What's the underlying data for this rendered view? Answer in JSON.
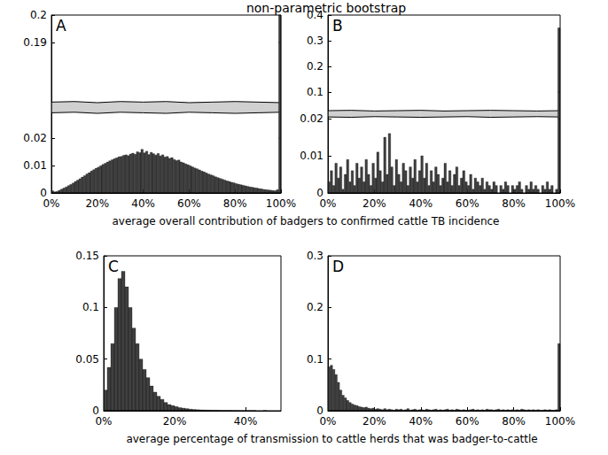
{
  "chart_data": [
    {
      "type": "histogram",
      "title": "non-parametric bootstrap",
      "annotation": "A",
      "xlabel": "average overall contribution of badgers to confirmed cattle TB incidence",
      "color": "#404040",
      "grid": false,
      "bins": [
        0,
        1,
        2,
        3,
        4,
        5,
        6,
        7,
        8,
        9,
        10,
        11,
        12,
        13,
        14,
        15,
        16,
        17,
        18,
        19,
        20,
        21,
        22,
        23,
        24,
        25,
        26,
        27,
        28,
        29,
        30,
        31,
        32,
        33,
        34,
        35,
        36,
        37,
        38,
        39,
        40,
        41,
        42,
        43,
        44,
        45,
        46,
        47,
        48,
        49,
        50,
        51,
        52,
        53,
        54,
        55,
        56,
        57,
        58,
        59,
        60,
        61,
        62,
        63,
        64,
        65,
        66,
        67,
        68,
        69,
        70,
        71,
        72,
        73,
        74,
        75,
        76,
        77,
        78,
        79,
        80,
        81,
        82,
        83,
        84,
        85,
        86,
        87,
        88,
        89,
        90,
        91,
        92,
        93,
        94,
        95,
        96,
        97,
        98,
        99,
        100
      ],
      "values": [
        0.0008,
        0.0004,
        0.0006,
        0.001,
        0.0014,
        0.0018,
        0.0022,
        0.0027,
        0.0031,
        0.0036,
        0.0042,
        0.0047,
        0.0052,
        0.0058,
        0.0063,
        0.0069,
        0.0074,
        0.008,
        0.0085,
        0.009,
        0.0094,
        0.0099,
        0.0104,
        0.0108,
        0.0113,
        0.0117,
        0.0121,
        0.0125,
        0.0128,
        0.0132,
        0.0133,
        0.0137,
        0.0139,
        0.0136,
        0.0142,
        0.0145,
        0.0141,
        0.015,
        0.0147,
        0.0159,
        0.0146,
        0.0152,
        0.014,
        0.0148,
        0.0143,
        0.0138,
        0.0144,
        0.0135,
        0.0139,
        0.0131,
        0.0133,
        0.0126,
        0.0129,
        0.0122,
        0.0118,
        0.012,
        0.0113,
        0.011,
        0.0106,
        0.0103,
        0.0099,
        0.0095,
        0.0091,
        0.0088,
        0.0084,
        0.008,
        0.0077,
        0.0073,
        0.0069,
        0.0066,
        0.0063,
        0.0059,
        0.0056,
        0.0053,
        0.005,
        0.0047,
        0.0044,
        0.0042,
        0.0039,
        0.0037,
        0.0034,
        0.0032,
        0.003,
        0.0028,
        0.0026,
        0.0024,
        0.0022,
        0.0021,
        0.0019,
        0.0018,
        0.0016,
        0.0015,
        0.0013,
        0.0012,
        0.0011,
        0.001,
        0.0009,
        0.0008,
        0.0012,
        0.2
      ],
      "band": {
        "x": [
          0,
          10,
          20,
          30,
          40,
          50,
          60,
          70,
          80,
          90,
          100
        ],
        "lower": [
          0.065,
          0.066,
          0.064,
          0.066,
          0.065,
          0.064,
          0.066,
          0.065,
          0.064,
          0.065,
          0.066
        ],
        "upper": [
          0.084,
          0.085,
          0.083,
          0.085,
          0.084,
          0.085,
          0.083,
          0.084,
          0.085,
          0.084,
          0.083
        ]
      },
      "xlim": [
        0,
        100
      ],
      "xticks": [
        {
          "value": 0,
          "label": "0%"
        },
        {
          "value": 20,
          "label": "20%"
        },
        {
          "value": 40,
          "label": "40%"
        },
        {
          "value": 60,
          "label": "60%"
        },
        {
          "value": 80,
          "label": "80%"
        },
        {
          "value": 100,
          "label": "100%"
        }
      ],
      "ylim": [
        0,
        0.2
      ],
      "yticks": [
        0,
        0.01,
        0.02,
        0.19,
        0.2
      ]
    },
    {
      "type": "histogram",
      "annotation": "B",
      "color": "#404040",
      "grid": false,
      "bins": [
        0,
        1,
        2,
        3,
        4,
        5,
        6,
        7,
        8,
        9,
        10,
        11,
        12,
        13,
        14,
        15,
        16,
        17,
        18,
        19,
        20,
        21,
        22,
        23,
        24,
        25,
        26,
        27,
        28,
        29,
        30,
        31,
        32,
        33,
        34,
        35,
        36,
        37,
        38,
        39,
        40,
        41,
        42,
        43,
        44,
        45,
        46,
        47,
        48,
        49,
        50,
        51,
        52,
        53,
        54,
        55,
        56,
        57,
        58,
        59,
        60,
        61,
        62,
        63,
        64,
        65,
        66,
        67,
        68,
        69,
        70,
        71,
        72,
        73,
        74,
        75,
        76,
        77,
        78,
        79,
        80,
        81,
        82,
        83,
        84,
        85,
        86,
        87,
        88,
        89,
        90,
        91,
        92,
        93,
        94,
        95,
        96,
        97,
        98,
        99,
        100
      ],
      "values": [
        0.003,
        0.006,
        0.002,
        0.008,
        0.004,
        0.007,
        0.001,
        0.005,
        0.009,
        0.003,
        0.006,
        0.002,
        0.008,
        0.004,
        0.007,
        0.003,
        0.009,
        0.005,
        0.002,
        0.008,
        0.004,
        0.011,
        0.006,
        0.003,
        0.015,
        0.005,
        0.016,
        0.007,
        0.002,
        0.009,
        0.005,
        0.003,
        0.008,
        0.006,
        0.002,
        0.007,
        0.004,
        0.009,
        0.003,
        0.006,
        0.01,
        0.004,
        0.008,
        0.002,
        0.006,
        0.003,
        0.007,
        0.005,
        0.002,
        0.004,
        0.008,
        0.003,
        0.006,
        0.002,
        0.005,
        0.007,
        0.002,
        0.004,
        0.006,
        0.003,
        0.002,
        0.005,
        0.001,
        0.004,
        0.003,
        0.002,
        0.004,
        0.001,
        0.003,
        0.002,
        0.001,
        0.003,
        0.002,
        0,
        0.002,
        0.001,
        0.003,
        0.002,
        0,
        0.002,
        0.001,
        0.002,
        0.003,
        0.001,
        0,
        0.002,
        0.001,
        0.003,
        0.001,
        0.002,
        0.001,
        0,
        0.002,
        0.001,
        0.003,
        0.001,
        0.002,
        0,
        0.001,
        0.35
      ],
      "band": {
        "x": [
          0,
          10,
          20,
          30,
          40,
          50,
          60,
          70,
          80,
          90,
          100
        ],
        "lower": [
          0.025,
          0.024,
          0.026,
          0.025,
          0.024,
          0.025,
          0.026,
          0.024,
          0.025,
          0.026,
          0.025
        ],
        "upper": [
          0.044,
          0.045,
          0.043,
          0.044,
          0.045,
          0.043,
          0.044,
          0.045,
          0.044,
          0.043,
          0.044
        ]
      },
      "xlim": [
        0,
        100
      ],
      "xticks": [
        {
          "value": 0,
          "label": "0%"
        },
        {
          "value": 20,
          "label": "20%"
        },
        {
          "value": 40,
          "label": "40%"
        },
        {
          "value": 60,
          "label": "60%"
        },
        {
          "value": 80,
          "label": "80%"
        },
        {
          "value": 100,
          "label": "100%"
        }
      ],
      "ylim": [
        0,
        0.4
      ],
      "yticks": [
        0,
        0.01,
        0.02,
        0.1,
        0.2,
        0.3,
        0.4
      ]
    },
    {
      "type": "histogram",
      "annotation": "C",
      "xlabel": "average percentage of transmission to cattle herds that was badger-to-cattle",
      "color": "#404040",
      "grid": false,
      "bins": [
        0,
        1,
        2,
        3,
        4,
        5,
        6,
        7,
        8,
        9,
        10,
        11,
        12,
        13,
        14,
        15,
        16,
        17,
        18,
        19,
        20,
        21,
        22,
        23,
        24,
        25,
        26,
        27,
        28,
        29,
        30,
        31,
        32,
        33,
        34,
        35,
        36,
        37,
        38,
        39,
        40,
        41,
        42,
        43,
        44,
        45,
        46,
        47,
        48,
        49,
        50
      ],
      "values": [
        0.02,
        0.042,
        0.065,
        0.1,
        0.128,
        0.135,
        0.12,
        0.1,
        0.08,
        0.065,
        0.05,
        0.04,
        0.032,
        0.024,
        0.018,
        0.014,
        0.011,
        0.008,
        0.006,
        0.005,
        0.004,
        0.003,
        0.0025,
        0.002,
        0.0015,
        0.0012,
        0.001,
        0.0008,
        0.0007,
        0.0006,
        0.0005,
        0.0005,
        0.0004,
        0.0003,
        0.0003,
        0.0003,
        0.0002,
        0.0002,
        0.0001,
        0.0001,
        0.0001,
        0.0001,
        0.0001,
        0,
        0,
        0.0001,
        0,
        0,
        0,
        0
      ],
      "xlim": [
        0,
        50
      ],
      "xticks": [
        {
          "value": 0,
          "label": "0%"
        },
        {
          "value": 20,
          "label": "20%"
        },
        {
          "value": 40,
          "label": "40%"
        }
      ],
      "ylim": [
        0,
        0.15
      ],
      "yticks": [
        0,
        0.05,
        0.1,
        0.15
      ]
    },
    {
      "type": "histogram",
      "annotation": "D",
      "color": "#404040",
      "grid": false,
      "bins": [
        0,
        1,
        2,
        3,
        4,
        5,
        6,
        7,
        8,
        9,
        10,
        11,
        12,
        13,
        14,
        15,
        16,
        17,
        18,
        19,
        20,
        21,
        22,
        23,
        24,
        25,
        26,
        27,
        28,
        29,
        30,
        31,
        32,
        33,
        34,
        35,
        36,
        37,
        38,
        39,
        40,
        41,
        42,
        43,
        44,
        45,
        46,
        47,
        48,
        49,
        50,
        51,
        52,
        53,
        54,
        55,
        56,
        57,
        58,
        59,
        60,
        61,
        62,
        63,
        64,
        65,
        66,
        67,
        68,
        69,
        70,
        71,
        72,
        73,
        74,
        75,
        76,
        77,
        78,
        79,
        80,
        81,
        82,
        83,
        84,
        85,
        86,
        87,
        88,
        89,
        90,
        91,
        92,
        93,
        94,
        95,
        96,
        97,
        98,
        99,
        100
      ],
      "values": [
        0.085,
        0.088,
        0.08,
        0.07,
        0.055,
        0.04,
        0.03,
        0.025,
        0.02,
        0.016,
        0.013,
        0.011,
        0.01,
        0.008,
        0.007,
        0.006,
        0.007,
        0.005,
        0.004,
        0.005,
        0.003,
        0.004,
        0.003,
        0.002,
        0.004,
        0.002,
        0.003,
        0.002,
        0.001,
        0.003,
        0.002,
        0.003,
        0.001,
        0.002,
        0.004,
        0.001,
        0.002,
        0.003,
        0.001,
        0.002,
        0.002,
        0.001,
        0.003,
        0.002,
        0.001,
        0.002,
        0.003,
        0.001,
        0.002,
        0.001,
        0.002,
        0.003,
        0.001,
        0.002,
        0.001,
        0.003,
        0.002,
        0.001,
        0.002,
        0.001,
        0.001,
        0.002,
        0.003,
        0.001,
        0.002,
        0.001,
        0.002,
        0.001,
        0.003,
        0.002,
        0.002,
        0.001,
        0.002,
        0.003,
        0.001,
        0.002,
        0.001,
        0.002,
        0.001,
        0.002,
        0.001,
        0.002,
        0.001,
        0.003,
        0.002,
        0.001,
        0.002,
        0.001,
        0.002,
        0.001,
        0.002,
        0.001,
        0.001,
        0.002,
        0.001,
        0.002,
        0.001,
        0.001,
        0.002,
        0.13
      ],
      "xlim": [
        0,
        100
      ],
      "xticks": [
        {
          "value": 0,
          "label": "0%"
        },
        {
          "value": 20,
          "label": "20%"
        },
        {
          "value": 40,
          "label": "40%"
        },
        {
          "value": 60,
          "label": "60%"
        },
        {
          "value": 80,
          "label": "80%"
        },
        {
          "value": 100,
          "label": "100%"
        }
      ],
      "ylim": [
        0,
        0.3
      ],
      "yticks": [
        0,
        0.1,
        0.2,
        0.3
      ]
    }
  ]
}
